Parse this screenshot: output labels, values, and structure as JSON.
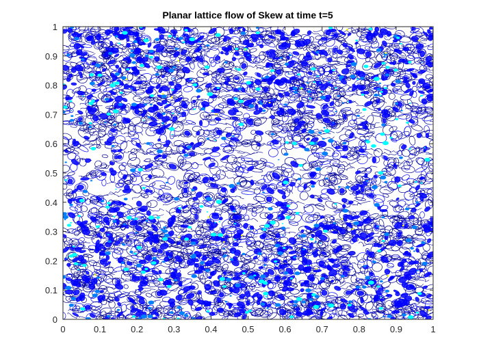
{
  "chart_data": {
    "type": "contour",
    "title": "Planar lattice flow of Skew at time t=5",
    "xlabel": "",
    "ylabel": "",
    "xlim": [
      0,
      1
    ],
    "ylim": [
      0,
      1
    ],
    "x_ticks": [
      "0",
      "0.1",
      "0.2",
      "0.3",
      "0.4",
      "0.5",
      "0.6",
      "0.7",
      "0.8",
      "0.9",
      "1"
    ],
    "y_ticks": [
      "0",
      "0.1",
      "0.2",
      "0.3",
      "0.4",
      "0.5",
      "0.6",
      "0.7",
      "0.8",
      "0.9",
      "1"
    ],
    "grid": false,
    "legend": "none",
    "colormap": "jet",
    "colors": {
      "low": "#00008f",
      "mid_low": "#0000ff",
      "mid": "#0080ff",
      "mid_high": "#00ffff",
      "high": "#ffff00",
      "axes": "#262626",
      "background": "#ffffff"
    },
    "pattern": {
      "dense_bands_y": [
        [
          0.0,
          0.35
        ],
        [
          0.7,
          1.0
        ]
      ],
      "sparse_band_y": [
        0.35,
        0.7
      ],
      "description": ""
    }
  }
}
